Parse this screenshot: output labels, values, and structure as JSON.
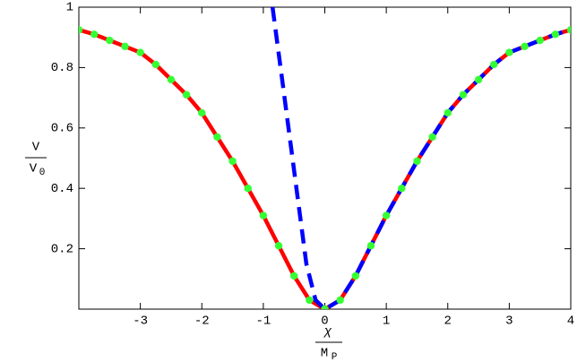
{
  "chart_data": {
    "type": "line",
    "x_label": {
      "numerator": "χ",
      "denominator": "M",
      "denominator_sub": "P"
    },
    "y_label": {
      "numerator": "V",
      "denominator": "V",
      "denominator_sub": "0"
    },
    "xlim": [
      -4,
      4
    ],
    "ylim": [
      0,
      1
    ],
    "xticks": [
      -3,
      -2,
      -1,
      0,
      1,
      2,
      3,
      4
    ],
    "yticks": [
      0.2,
      0.4,
      0.6,
      0.8,
      1
    ],
    "series": [
      {
        "style": "solid",
        "color": "#ff0000",
        "x": [
          -4,
          -3.75,
          -3.5,
          -3.25,
          -3,
          -2.75,
          -2.5,
          -2.25,
          -2,
          -1.75,
          -1.5,
          -1.25,
          -1,
          -0.75,
          -0.5,
          -0.25,
          0,
          0.25,
          0.5,
          0.75,
          1,
          1.25,
          1.5,
          1.75,
          2,
          2.25,
          2.5,
          2.75,
          3,
          3.25,
          3.5,
          3.75,
          4
        ],
        "values": [
          0.925,
          0.91,
          0.89,
          0.87,
          0.85,
          0.81,
          0.76,
          0.71,
          0.65,
          0.57,
          0.49,
          0.4,
          0.31,
          0.21,
          0.11,
          0.03,
          0,
          0.03,
          0.11,
          0.21,
          0.31,
          0.4,
          0.49,
          0.57,
          0.65,
          0.71,
          0.76,
          0.81,
          0.85,
          0.87,
          0.89,
          0.91,
          0.925
        ]
      },
      {
        "style": "dashed",
        "color": "#0000ff",
        "x": [
          -0.85,
          -0.7,
          -0.5,
          -0.3,
          -0.15,
          0,
          0.25,
          0.5,
          0.75,
          1,
          1.25,
          1.5,
          1.75,
          2,
          2.25,
          2.5,
          2.75,
          3,
          3.25,
          3.5,
          3.75,
          4
        ],
        "values": [
          1,
          0.77,
          0.46,
          0.15,
          0.03,
          0,
          0.03,
          0.11,
          0.21,
          0.31,
          0.4,
          0.49,
          0.57,
          0.65,
          0.71,
          0.76,
          0.81,
          0.85,
          0.87,
          0.89,
          0.91,
          0.925
        ]
      },
      {
        "style": "dots",
        "color": "#33ff33",
        "x": [
          -4,
          -3.75,
          -3.5,
          -3.25,
          -3,
          -2.75,
          -2.5,
          -2.25,
          -2,
          -1.75,
          -1.5,
          -1.25,
          -1,
          -0.75,
          -0.5,
          -0.25,
          0,
          0.25,
          0.5,
          0.75,
          1,
          1.25,
          1.5,
          1.75,
          2,
          2.25,
          2.5,
          2.75,
          3,
          3.25,
          3.5,
          3.75,
          4
        ],
        "values": [
          0.925,
          0.91,
          0.89,
          0.87,
          0.85,
          0.81,
          0.76,
          0.71,
          0.65,
          0.57,
          0.49,
          0.4,
          0.31,
          0.21,
          0.11,
          0.03,
          0,
          0.03,
          0.11,
          0.21,
          0.31,
          0.4,
          0.49,
          0.57,
          0.65,
          0.71,
          0.76,
          0.81,
          0.85,
          0.87,
          0.89,
          0.91,
          0.925
        ]
      }
    ]
  }
}
